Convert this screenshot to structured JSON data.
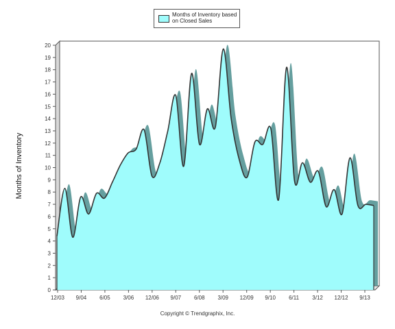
{
  "legend": {
    "label": "Months of Inventory based on Closed Sales"
  },
  "copyright": "Copyright © Trendgraphix, Inc.",
  "colors": {
    "fill": "#9ffcfc",
    "line": "#333333",
    "frame": "#555555",
    "shadow": "#4a8e8e"
  },
  "chart_data": {
    "type": "area",
    "title": "",
    "xlabel": "",
    "ylabel": "Months of Inventory",
    "ylim": [
      0,
      20
    ],
    "yticks": [
      0,
      1,
      2,
      3,
      4,
      5,
      6,
      7,
      8,
      9,
      10,
      11,
      12,
      13,
      14,
      15,
      16,
      17,
      18,
      19,
      20
    ],
    "xticks": [
      "12/03",
      "9/04",
      "6/05",
      "3/06",
      "12/06",
      "9/07",
      "6/08",
      "3/09",
      "12/09",
      "9/10",
      "6/11",
      "3/12",
      "12/12",
      "9/13"
    ],
    "grid": false,
    "legend_position": "top",
    "series": [
      {
        "name": "Months of Inventory based on Closed Sales",
        "values": [
          4.4,
          8.3,
          4.3,
          7.6,
          6.2,
          7.9,
          7.5,
          8.8,
          10.2,
          11.2,
          11.5,
          13.1,
          9.3,
          10.4,
          13.0,
          15.9,
          10.1,
          17.7,
          11.9,
          14.8,
          13.3,
          19.7,
          14.0,
          10.7,
          9.2,
          12.1,
          11.9,
          13.2,
          7.4,
          18.2,
          8.9,
          10.4,
          8.8,
          9.7,
          6.8,
          8.2,
          6.2,
          10.8,
          6.9,
          7.0,
          6.9
        ]
      }
    ]
  }
}
